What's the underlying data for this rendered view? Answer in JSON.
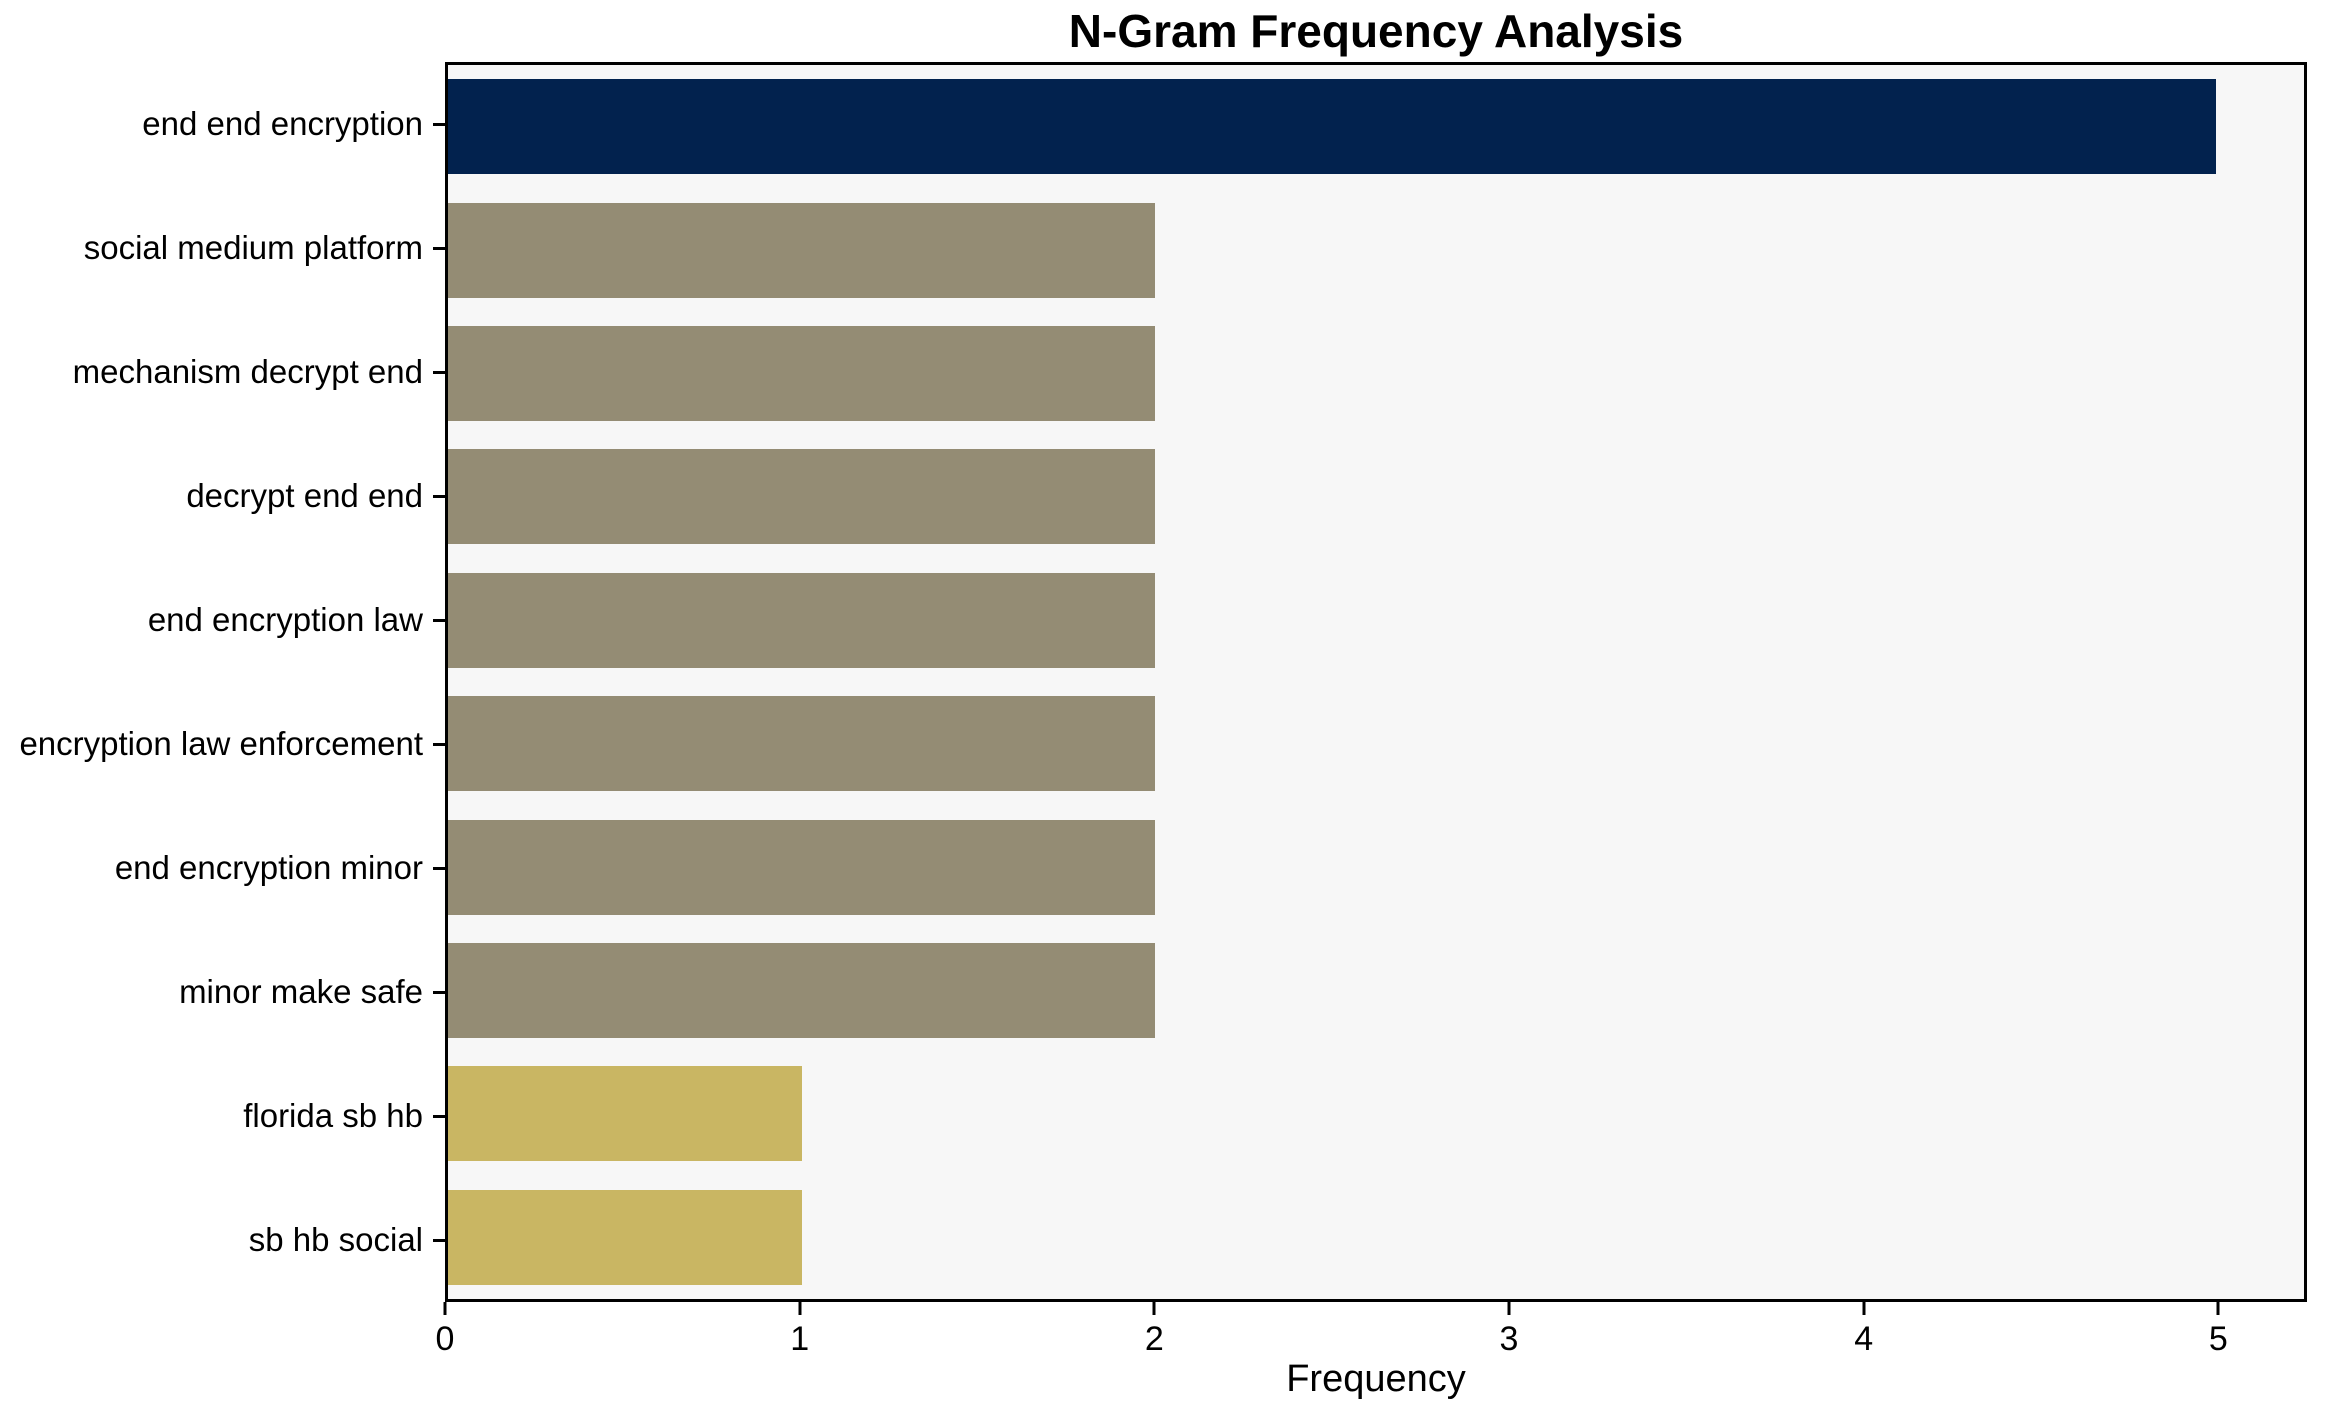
{
  "chart_data": {
    "type": "bar",
    "orientation": "horizontal",
    "title": "N-Gram Frequency Analysis",
    "xlabel": "Frequency",
    "ylabel": "",
    "categories": [
      "end end encryption",
      "social medium platform",
      "mechanism decrypt end",
      "decrypt end end",
      "end encryption law",
      "encryption law enforcement",
      "end encryption minor",
      "minor make safe",
      "florida sb hb",
      "sb hb social"
    ],
    "values": [
      5,
      2,
      2,
      2,
      2,
      2,
      2,
      2,
      1,
      1
    ],
    "bar_colors": [
      "#02224e",
      "#948c74",
      "#948c74",
      "#948c74",
      "#948c74",
      "#948c74",
      "#948c74",
      "#948c74",
      "#c9b663",
      "#c9b663"
    ],
    "xlim": [
      0,
      5.25
    ],
    "xticks": [
      0,
      1,
      2,
      3,
      4,
      5
    ],
    "grid": false,
    "legend_position": "none",
    "plot_background": "#f7f7f7",
    "page_background": "#ffffff",
    "spine_color": "#000000",
    "text_color": "#000000"
  }
}
